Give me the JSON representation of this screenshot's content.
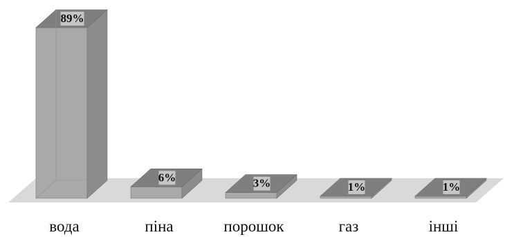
{
  "chart_data": {
    "type": "bar",
    "style": "3d",
    "categories": [
      "вода",
      "піна",
      "порошок",
      "газ",
      "інші"
    ],
    "values": [
      89,
      6,
      3,
      1,
      1
    ],
    "data_labels": [
      "89%",
      "6%",
      "3%",
      "1%",
      "1%"
    ],
    "title": "",
    "xlabel": "",
    "ylabel": "",
    "ylim": [
      0,
      89
    ],
    "grid": false,
    "legend": "none",
    "colors": {
      "front": "#a9a9a9",
      "side": "#8c8c8c",
      "top": "#7f7f7f",
      "floor": "#d9d9d9",
      "label_bg": "#c6c6c6"
    }
  }
}
